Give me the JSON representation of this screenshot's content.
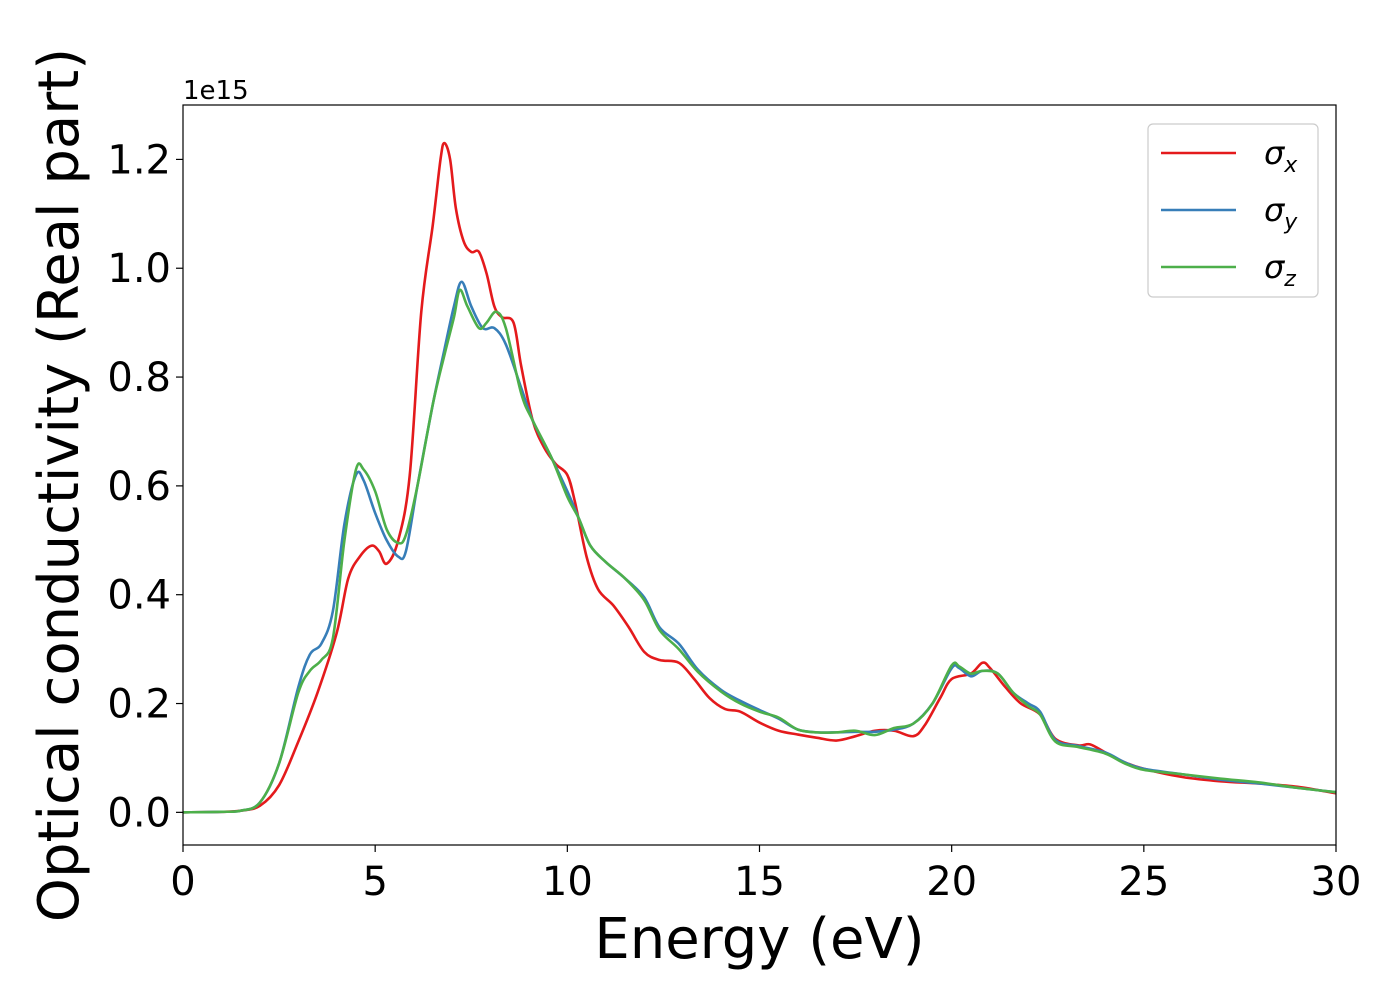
{
  "chart_data": {
    "type": "line",
    "xlabel": "Energy (eV)",
    "ylabel": "Optical conductivity (Real part)",
    "y_offset_label": "1e15",
    "xlim": [
      0,
      30
    ],
    "ylim": [
      -0.06,
      1.3
    ],
    "x_ticks": [
      0,
      5,
      10,
      15,
      20,
      25,
      30
    ],
    "x_tick_labels": [
      "0",
      "5",
      "10",
      "15",
      "20",
      "25",
      "30"
    ],
    "y_ticks": [
      0.0,
      0.2,
      0.4,
      0.6,
      0.8,
      1.0,
      1.2
    ],
    "y_tick_labels": [
      "0.0",
      "0.2",
      "0.4",
      "0.6",
      "0.8",
      "1.0",
      "1.2"
    ],
    "grid": false,
    "legend_position": "top-right",
    "series": [
      {
        "name": "σ_x",
        "symbol": "σ",
        "subscript": "x",
        "color": "#e41a1c",
        "points": [
          [
            0,
            0.0
          ],
          [
            1,
            0.001
          ],
          [
            1.5,
            0.003
          ],
          [
            2,
            0.012
          ],
          [
            2.5,
            0.05
          ],
          [
            3,
            0.13
          ],
          [
            3.5,
            0.22
          ],
          [
            4,
            0.33
          ],
          [
            4.3,
            0.43
          ],
          [
            4.6,
            0.47
          ],
          [
            4.9,
            0.49
          ],
          [
            5.1,
            0.48
          ],
          [
            5.3,
            0.457
          ],
          [
            5.6,
            0.5
          ],
          [
            5.9,
            0.62
          ],
          [
            6.2,
            0.92
          ],
          [
            6.5,
            1.08
          ],
          [
            6.7,
            1.2
          ],
          [
            6.8,
            1.23
          ],
          [
            6.95,
            1.2
          ],
          [
            7.1,
            1.11
          ],
          [
            7.3,
            1.05
          ],
          [
            7.5,
            1.03
          ],
          [
            7.7,
            1.03
          ],
          [
            7.9,
            0.99
          ],
          [
            8.1,
            0.93
          ],
          [
            8.3,
            0.91
          ],
          [
            8.6,
            0.9
          ],
          [
            8.8,
            0.82
          ],
          [
            9.1,
            0.72
          ],
          [
            9.4,
            0.67
          ],
          [
            9.7,
            0.64
          ],
          [
            10,
            0.62
          ],
          [
            10.2,
            0.57
          ],
          [
            10.5,
            0.47
          ],
          [
            10.8,
            0.41
          ],
          [
            11.2,
            0.38
          ],
          [
            11.6,
            0.34
          ],
          [
            12,
            0.295
          ],
          [
            12.4,
            0.28
          ],
          [
            12.9,
            0.275
          ],
          [
            13.3,
            0.245
          ],
          [
            13.7,
            0.21
          ],
          [
            14.1,
            0.19
          ],
          [
            14.5,
            0.185
          ],
          [
            15,
            0.165
          ],
          [
            15.5,
            0.15
          ],
          [
            16,
            0.143
          ],
          [
            16.5,
            0.137
          ],
          [
            17,
            0.132
          ],
          [
            17.5,
            0.14
          ],
          [
            18,
            0.15
          ],
          [
            18.5,
            0.15
          ],
          [
            19,
            0.14
          ],
          [
            19.3,
            0.16
          ],
          [
            19.7,
            0.21
          ],
          [
            20,
            0.245
          ],
          [
            20.5,
            0.255
          ],
          [
            20.8,
            0.275
          ],
          [
            21,
            0.265
          ],
          [
            21.4,
            0.23
          ],
          [
            21.8,
            0.2
          ],
          [
            22.3,
            0.18
          ],
          [
            22.7,
            0.135
          ],
          [
            23.3,
            0.123
          ],
          [
            23.6,
            0.125
          ],
          [
            24,
            0.11
          ],
          [
            24.5,
            0.092
          ],
          [
            25,
            0.08
          ],
          [
            26,
            0.065
          ],
          [
            27,
            0.057
          ],
          [
            28,
            0.053
          ],
          [
            29,
            0.047
          ],
          [
            30,
            0.035
          ]
        ]
      },
      {
        "name": "σ_y",
        "symbol": "σ",
        "subscript": "y",
        "color": "#377eb8",
        "points": [
          [
            0,
            0.0
          ],
          [
            1,
            0.001
          ],
          [
            1.5,
            0.003
          ],
          [
            2,
            0.018
          ],
          [
            2.5,
            0.09
          ],
          [
            3,
            0.23
          ],
          [
            3.3,
            0.29
          ],
          [
            3.6,
            0.31
          ],
          [
            3.9,
            0.37
          ],
          [
            4.2,
            0.53
          ],
          [
            4.5,
            0.62
          ],
          [
            4.7,
            0.61
          ],
          [
            5,
            0.55
          ],
          [
            5.3,
            0.5
          ],
          [
            5.6,
            0.47
          ],
          [
            5.8,
            0.48
          ],
          [
            6.1,
            0.6
          ],
          [
            6.5,
            0.75
          ],
          [
            6.8,
            0.85
          ],
          [
            7.05,
            0.93
          ],
          [
            7.25,
            0.975
          ],
          [
            7.5,
            0.93
          ],
          [
            7.8,
            0.89
          ],
          [
            8.1,
            0.89
          ],
          [
            8.4,
            0.86
          ],
          [
            8.8,
            0.78
          ],
          [
            9.1,
            0.72
          ],
          [
            9.6,
            0.65
          ],
          [
            10,
            0.59
          ],
          [
            10.3,
            0.54
          ],
          [
            10.6,
            0.49
          ],
          [
            11,
            0.46
          ],
          [
            11.5,
            0.43
          ],
          [
            12,
            0.395
          ],
          [
            12.4,
            0.34
          ],
          [
            12.9,
            0.31
          ],
          [
            13.4,
            0.262
          ],
          [
            14,
            0.225
          ],
          [
            14.5,
            0.205
          ],
          [
            15,
            0.188
          ],
          [
            15.5,
            0.172
          ],
          [
            16,
            0.152
          ],
          [
            16.5,
            0.147
          ],
          [
            17,
            0.147
          ],
          [
            17.5,
            0.148
          ],
          [
            18,
            0.148
          ],
          [
            18.5,
            0.152
          ],
          [
            19,
            0.163
          ],
          [
            19.5,
            0.2
          ],
          [
            20,
            0.265
          ],
          [
            20.2,
            0.265
          ],
          [
            20.5,
            0.25
          ],
          [
            20.8,
            0.26
          ],
          [
            21.2,
            0.255
          ],
          [
            21.6,
            0.22
          ],
          [
            22,
            0.2
          ],
          [
            22.3,
            0.185
          ],
          [
            22.7,
            0.133
          ],
          [
            23.3,
            0.122
          ],
          [
            24,
            0.11
          ],
          [
            24.5,
            0.092
          ],
          [
            25,
            0.08
          ],
          [
            26,
            0.07
          ],
          [
            27,
            0.06
          ],
          [
            28,
            0.053
          ],
          [
            29,
            0.045
          ],
          [
            30,
            0.037
          ]
        ]
      },
      {
        "name": "σ_z",
        "symbol": "σ",
        "subscript": "z",
        "color": "#4daf4a",
        "points": [
          [
            0,
            0.0
          ],
          [
            1,
            0.001
          ],
          [
            1.5,
            0.003
          ],
          [
            2,
            0.018
          ],
          [
            2.5,
            0.09
          ],
          [
            3,
            0.22
          ],
          [
            3.3,
            0.26
          ],
          [
            3.6,
            0.28
          ],
          [
            3.9,
            0.32
          ],
          [
            4.2,
            0.5
          ],
          [
            4.5,
            0.63
          ],
          [
            4.7,
            0.63
          ],
          [
            5,
            0.59
          ],
          [
            5.3,
            0.52
          ],
          [
            5.6,
            0.495
          ],
          [
            5.8,
            0.51
          ],
          [
            6.1,
            0.6
          ],
          [
            6.5,
            0.75
          ],
          [
            6.8,
            0.84
          ],
          [
            7.05,
            0.91
          ],
          [
            7.2,
            0.96
          ],
          [
            7.4,
            0.93
          ],
          [
            7.7,
            0.89
          ],
          [
            7.9,
            0.9
          ],
          [
            8.15,
            0.92
          ],
          [
            8.4,
            0.89
          ],
          [
            8.8,
            0.77
          ],
          [
            9.1,
            0.72
          ],
          [
            9.6,
            0.65
          ],
          [
            10,
            0.58
          ],
          [
            10.3,
            0.54
          ],
          [
            10.6,
            0.49
          ],
          [
            11,
            0.46
          ],
          [
            11.5,
            0.43
          ],
          [
            12,
            0.39
          ],
          [
            12.4,
            0.335
          ],
          [
            12.9,
            0.3
          ],
          [
            13.4,
            0.258
          ],
          [
            14,
            0.222
          ],
          [
            14.5,
            0.2
          ],
          [
            15,
            0.185
          ],
          [
            15.5,
            0.174
          ],
          [
            16,
            0.152
          ],
          [
            16.5,
            0.147
          ],
          [
            17,
            0.147
          ],
          [
            17.5,
            0.15
          ],
          [
            18,
            0.142
          ],
          [
            18.5,
            0.155
          ],
          [
            19,
            0.163
          ],
          [
            19.5,
            0.2
          ],
          [
            20,
            0.27
          ],
          [
            20.2,
            0.268
          ],
          [
            20.5,
            0.255
          ],
          [
            20.8,
            0.26
          ],
          [
            21.2,
            0.255
          ],
          [
            21.6,
            0.22
          ],
          [
            22,
            0.195
          ],
          [
            22.3,
            0.18
          ],
          [
            22.7,
            0.13
          ],
          [
            23.3,
            0.12
          ],
          [
            24,
            0.108
          ],
          [
            24.5,
            0.09
          ],
          [
            25,
            0.078
          ],
          [
            26,
            0.07
          ],
          [
            27,
            0.062
          ],
          [
            28,
            0.055
          ],
          [
            29,
            0.045
          ],
          [
            30,
            0.037
          ]
        ]
      }
    ]
  }
}
